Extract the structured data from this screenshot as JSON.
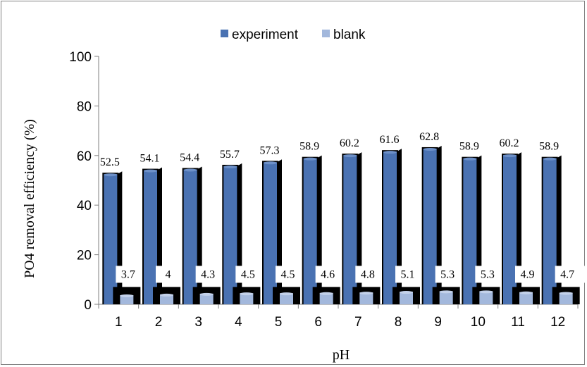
{
  "chart_data": {
    "type": "bar",
    "title": "",
    "xlabel": "pH",
    "ylabel": "PO4 removal efficiency (%)",
    "categories": [
      "1",
      "2",
      "3",
      "4",
      "5",
      "6",
      "7",
      "8",
      "9",
      "10",
      "11",
      "12"
    ],
    "series": [
      {
        "name": "experiment",
        "values": [
          52.5,
          54.1,
          54.4,
          55.7,
          57.3,
          58.9,
          60.2,
          61.6,
          62.8,
          58.9,
          60.2,
          58.9
        ],
        "labels": [
          "52.5",
          "54.1",
          "54.4",
          "55.7",
          "57.3",
          "58.9",
          "60.2",
          "61.6",
          "62.8",
          "58.9",
          "60.2",
          "58.9"
        ]
      },
      {
        "name": "blank",
        "values": [
          3.7,
          4,
          4.3,
          4.5,
          4.5,
          4.6,
          4.8,
          5.1,
          5.3,
          5.3,
          4.9,
          4.7
        ],
        "labels": [
          "3.7",
          "4",
          "4.3",
          "4.5",
          "4.5",
          "4.6",
          "4.8",
          "5.1",
          "5.3",
          "5.3",
          "4.9",
          "4.7"
        ]
      }
    ],
    "yticks": [
      "0",
      "20",
      "40",
      "60",
      "80",
      "100"
    ],
    "ylim": [
      0,
      100
    ],
    "grid": false,
    "legend_position": "top",
    "colors": {
      "experiment": "#4a72b2",
      "experiment_top": "#6d90c8",
      "blank": "#a3b8dc",
      "blank_top": "#c3d1ea",
      "shadow": "#000000",
      "axis": "#7f7f7f"
    }
  }
}
